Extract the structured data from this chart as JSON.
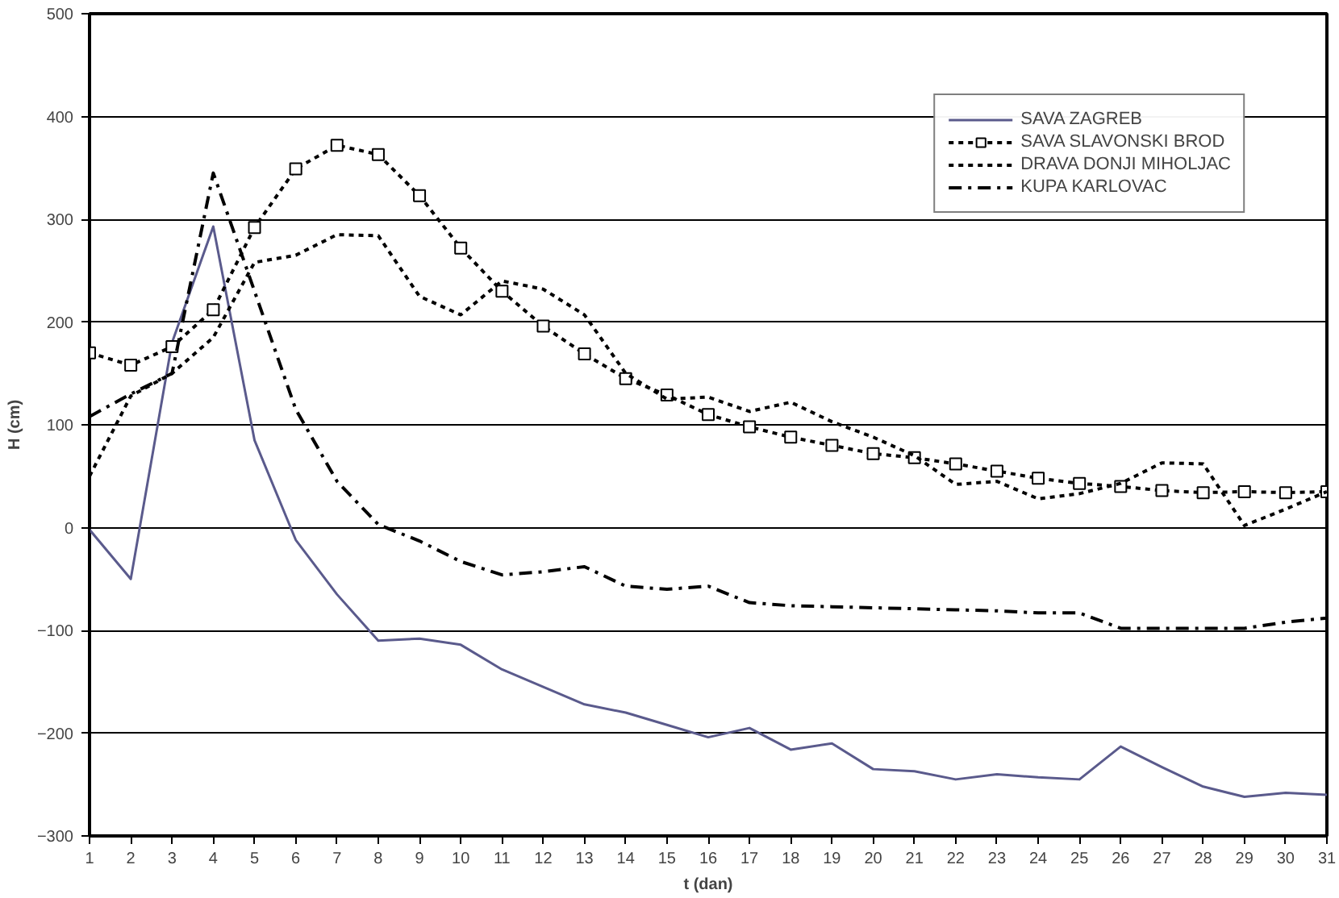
{
  "chart_data": {
    "type": "line",
    "xlabel": "t (dan)",
    "ylabel": "H (cm)",
    "x": [
      1,
      2,
      3,
      4,
      5,
      6,
      7,
      8,
      9,
      10,
      11,
      12,
      13,
      14,
      15,
      16,
      17,
      18,
      19,
      20,
      21,
      22,
      23,
      24,
      25,
      26,
      27,
      28,
      29,
      30,
      31
    ],
    "xlim": [
      1,
      31
    ],
    "xticks": [
      1,
      2,
      3,
      4,
      5,
      6,
      7,
      8,
      9,
      10,
      11,
      12,
      13,
      14,
      15,
      16,
      17,
      18,
      19,
      20,
      21,
      22,
      23,
      24,
      25,
      26,
      27,
      28,
      29,
      30,
      31
    ],
    "ylim": [
      -300,
      500
    ],
    "yticks": [
      -300,
      -200,
      -100,
      0,
      100,
      200,
      300,
      400,
      500
    ],
    "grid": "y",
    "legend": "top right",
    "series": [
      {
        "name": "SAVA ZAGREB",
        "color": "#5a5a8c",
        "line_style": "solid",
        "marker": "none",
        "values": [
          -2,
          -50,
          180,
          293,
          85,
          -12,
          -65,
          -110,
          -108,
          -114,
          -138,
          -155,
          -172,
          -180,
          -192,
          -204,
          -195,
          -216,
          -210,
          -235,
          -237,
          -245,
          -240,
          -243,
          -245,
          -213,
          -233,
          -252,
          -262,
          -258,
          -260
        ]
      },
      {
        "name": "SAVA SLAVONSKI BROD",
        "color": "#000000",
        "line_style": "dotted",
        "marker": "square",
        "values": [
          170,
          158,
          176,
          212,
          292,
          349,
          372,
          363,
          323,
          272,
          230,
          196,
          169,
          145,
          129,
          110,
          98,
          88,
          80,
          72,
          68,
          62,
          55,
          48,
          43,
          40,
          36,
          34,
          35,
          34,
          35
        ]
      },
      {
        "name": "DRAVA DONJI MIHOLJAC",
        "color": "#000000",
        "line_style": "dotted",
        "marker": "none",
        "values": [
          50,
          128,
          150,
          185,
          258,
          265,
          285,
          284,
          225,
          207,
          240,
          232,
          207,
          150,
          125,
          127,
          113,
          122,
          103,
          88,
          70,
          42,
          45,
          28,
          33,
          43,
          63,
          62,
          2,
          18,
          35
        ]
      },
      {
        "name": "KUPA KARLOVAC",
        "color": "#000000",
        "line_style": "dashed",
        "marker": "none",
        "values": [
          108,
          130,
          150,
          345,
          230,
          115,
          45,
          3,
          -13,
          -33,
          -46,
          -43,
          -38,
          -57,
          -60,
          -57,
          -73,
          -76,
          -77,
          -78,
          -79,
          -80,
          -81,
          -83,
          -83,
          -98,
          -98,
          -98,
          -98,
          -92,
          -88
        ]
      }
    ]
  }
}
